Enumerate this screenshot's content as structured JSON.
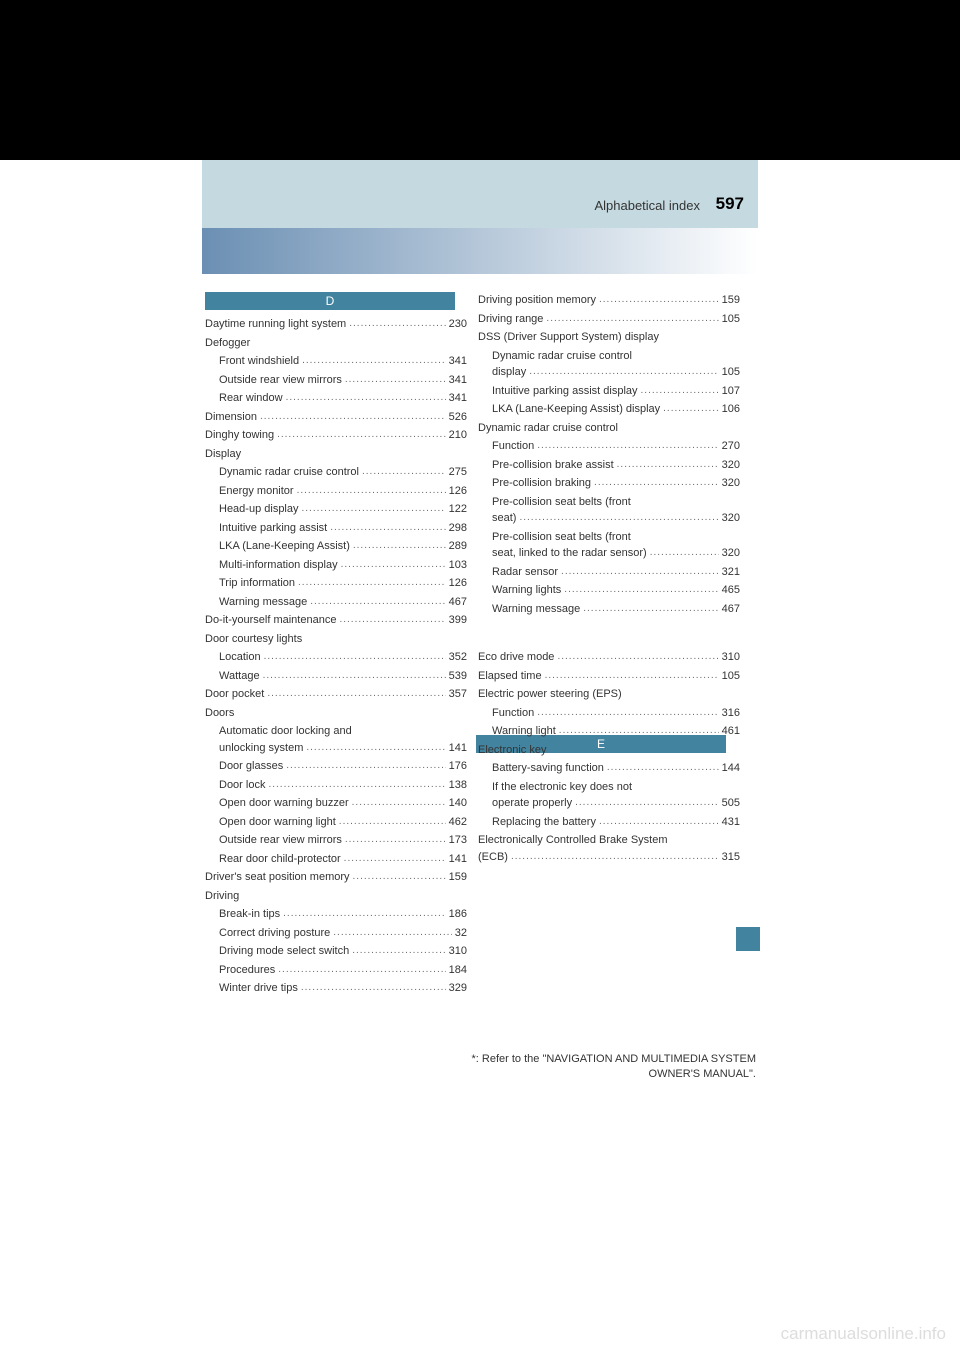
{
  "header": {
    "label": "Alphabetical index",
    "page_number": "597"
  },
  "tabs": {
    "d": "D",
    "e": "E"
  },
  "left_col": [
    {
      "label": "Daytime running light system",
      "page": "230",
      "sub": false
    },
    {
      "label": "Defogger",
      "sub": false
    },
    {
      "label": "Front windshield",
      "page": "341",
      "sub": true
    },
    {
      "label": "Outside rear view mirrors",
      "page": "341",
      "sub": true
    },
    {
      "label": "Rear window",
      "page": "341",
      "sub": true
    },
    {
      "label": "Dimension",
      "page": "526",
      "sub": false
    },
    {
      "label": "Dinghy towing",
      "page": "210",
      "sub": false
    },
    {
      "label": "Display",
      "sub": false
    },
    {
      "label": "Dynamic radar cruise control",
      "page": "275",
      "sub": true
    },
    {
      "label": "Energy monitor",
      "page": "126",
      "sub": true
    },
    {
      "label": "Head-up display",
      "page": "122",
      "sub": true
    },
    {
      "label": "Intuitive parking assist",
      "page": "298",
      "sub": true
    },
    {
      "label": "LKA (Lane-Keeping Assist)",
      "page": "289",
      "sub": true
    },
    {
      "label": "Multi-information display",
      "page": "103",
      "sub": true
    },
    {
      "label": "Trip information",
      "page": "126",
      "sub": true
    },
    {
      "label": "Warning message",
      "page": "467",
      "sub": true
    },
    {
      "label": "Do-it-yourself maintenance",
      "page": "399",
      "sub": false
    },
    {
      "label": "Door courtesy lights",
      "sub": false
    },
    {
      "label": "Location",
      "page": "352",
      "sub": true
    },
    {
      "label": "Wattage",
      "page": "539",
      "sub": true
    },
    {
      "label": "Door pocket",
      "page": "357",
      "sub": false
    },
    {
      "label": "Doors",
      "sub": false
    },
    {
      "label": "Automatic door locking and unlocking system",
      "page": "141",
      "sub": true,
      "multiline": true
    },
    {
      "label": "Door glasses",
      "page": "176",
      "sub": true
    },
    {
      "label": "Door lock",
      "page": "138",
      "sub": true
    },
    {
      "label": "Open door warning buzzer",
      "page": "140",
      "sub": true
    },
    {
      "label": "Open door warning light",
      "page": "462",
      "sub": true
    },
    {
      "label": "Outside rear view mirrors",
      "page": "173",
      "sub": true
    },
    {
      "label": "Rear door child-protector",
      "page": "141",
      "sub": true
    },
    {
      "label": "Driver's seat position memory",
      "page": "159",
      "sub": false
    },
    {
      "label": "Driving",
      "sub": false
    },
    {
      "label": "Break-in tips",
      "page": "186",
      "sub": true
    },
    {
      "label": "Correct driving posture",
      "page": "32",
      "sub": true
    },
    {
      "label": "Driving mode select switch",
      "page": "310",
      "sub": true
    },
    {
      "label": "Procedures",
      "page": "184",
      "sub": true
    },
    {
      "label": "Winter drive tips",
      "page": "329",
      "sub": true
    }
  ],
  "right_col_top": [
    {
      "label": "Driving position memory",
      "page": "159",
      "sub": false
    },
    {
      "label": "Driving range",
      "page": "105",
      "sub": false
    },
    {
      "label": "DSS (Driver Support System) display",
      "sub": false,
      "multiline": true
    },
    {
      "label": "Dynamic radar cruise control display",
      "page": "105",
      "sub": true,
      "multiline": true
    },
    {
      "label": "Intuitive parking assist display",
      "page": "107",
      "sub": true,
      "multiline": true
    },
    {
      "label": "LKA (Lane-Keeping Assist) display",
      "page": "106",
      "sub": true,
      "multiline": true
    },
    {
      "label": "Dynamic radar cruise control",
      "sub": false
    },
    {
      "label": "Function",
      "page": "270",
      "sub": true
    },
    {
      "label": "Pre-collision brake assist",
      "page": "320",
      "sub": true
    },
    {
      "label": "Pre-collision braking",
      "page": "320",
      "sub": true
    },
    {
      "label": "Pre-collision seat belts (front seat)",
      "page": "320",
      "sub": true,
      "multiline": true
    },
    {
      "label": "Pre-collision seat belts (front seat, linked to the radar sensor)",
      "page": "320",
      "sub": true,
      "multiline": true
    },
    {
      "label": "Radar sensor",
      "page": "321",
      "sub": true
    },
    {
      "label": "Warning lights",
      "page": "465",
      "sub": true
    },
    {
      "label": "Warning message",
      "page": "467",
      "sub": true
    }
  ],
  "right_col_bottom": [
    {
      "label": "Eco drive mode",
      "page": "310",
      "sub": false
    },
    {
      "label": "Elapsed time",
      "page": "105",
      "sub": false
    },
    {
      "label": "Electric power steering (EPS)",
      "sub": false
    },
    {
      "label": "Function",
      "page": "316",
      "sub": true
    },
    {
      "label": "Warning light",
      "page": "461",
      "sub": true
    },
    {
      "label": "Electronic key",
      "sub": false
    },
    {
      "label": "Battery-saving function",
      "page": "144",
      "sub": true
    },
    {
      "label": "If the electronic key does not operate properly",
      "page": "505",
      "sub": true,
      "multiline": true
    },
    {
      "label": "Replacing the battery",
      "page": "431",
      "sub": true
    },
    {
      "label": "Electronically Controlled Brake System (ECB)",
      "page": "315",
      "sub": false,
      "multiline": true
    }
  ],
  "footnote": {
    "prefix": "*",
    "text": ": Refer to the \"NAVIGATION AND MULTIMEDIA SYSTEM OWNER'S MANUAL\"."
  },
  "watermark": "carmanualsonline.info"
}
